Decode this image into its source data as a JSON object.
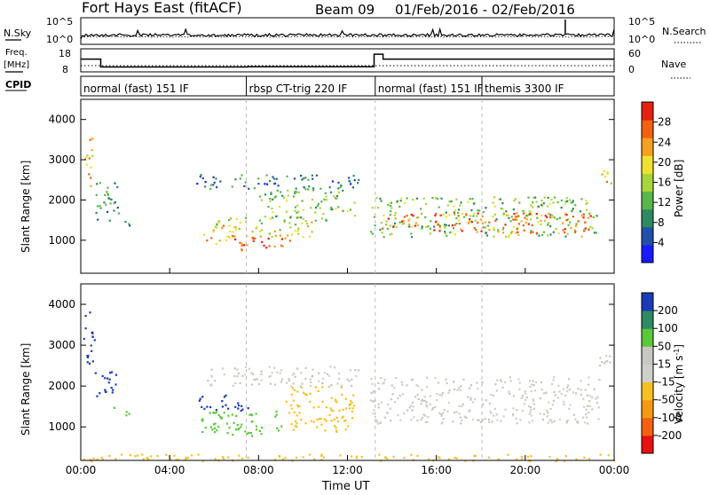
{
  "header": {
    "title": "Fort Hays East (fitACF)",
    "beam": "Beam 09",
    "date_range": "01/Feb/2016 - 02/Feb/2016"
  },
  "colors": {
    "power_scale": [
      "#1a1aff",
      "#2250a8",
      "#2e8a60",
      "#58b84a",
      "#a8d63a",
      "#f0e030",
      "#f5a020",
      "#f26010",
      "#e82010"
    ],
    "velocity_scale": [
      "#e81010",
      "#f26010",
      "#f59a10",
      "#f6c020",
      "#d0d0c8",
      "#c8c8c0",
      "#5ac83a",
      "#2e8a60",
      "#1a3ab8"
    ]
  },
  "top_panels": {
    "nsky": {
      "left_label": "N.Sky",
      "left_ticks": [
        "10^5",
        "10^0"
      ],
      "right_label": "N.Search",
      "right_ticks": [
        "10^5",
        "10^0"
      ],
      "series": {
        "nsky": "solid",
        "nsearch": "dotted"
      }
    },
    "freq": {
      "left_label_1": "Freq.",
      "left_label_2": "[MHz]",
      "left_ticks": [
        "18",
        "8"
      ],
      "right_label": "Nave",
      "right_ticks": [
        "60",
        "0"
      ],
      "freq_segments": [
        {
          "t0": 0.0,
          "t1": 0.9,
          "mhz": 14
        },
        {
          "t0": 0.9,
          "t1": 7.5,
          "mhz": 10.3
        },
        {
          "t0": 7.5,
          "t1": 13.2,
          "mhz": 10.4
        },
        {
          "t0": 13.2,
          "t1": 13.6,
          "mhz": 16.3
        },
        {
          "t0": 13.6,
          "t1": 24.0,
          "mhz": 14
        }
      ]
    },
    "cpid": {
      "label": "CPID",
      "segments": [
        {
          "t0": 0.0,
          "text": "normal (fast) 151 IF"
        },
        {
          "t0": 7.45,
          "text": "rbsp CT-trig 220 IF"
        },
        {
          "t0": 13.25,
          "text": "normal (fast) 151 IF"
        },
        {
          "t0": 18.05,
          "text": "themis 3300 IF"
        }
      ]
    }
  },
  "x_axis": {
    "label": "Time UT",
    "ticks": [
      "00:00",
      "04:00",
      "08:00",
      "12:00",
      "16:00",
      "20:00",
      "00:00"
    ]
  },
  "chart_data": [
    {
      "type": "heatmap",
      "title": "Power",
      "ylabel": "Slant Range [km]",
      "xlabel": "Time UT",
      "xlim": [
        0,
        24
      ],
      "ylim": [
        180,
        4500
      ],
      "yticks": [
        1000,
        2000,
        3000,
        4000
      ],
      "colorbar": {
        "label": "Power [dB]",
        "ticks": [
          4,
          8,
          12,
          16,
          20,
          24,
          28
        ],
        "range": [
          0,
          32
        ]
      },
      "regions": [
        {
          "t0": 0.1,
          "t1": 0.5,
          "r0": 2300,
          "r1": 3600,
          "value": 22
        },
        {
          "t0": 0.6,
          "t1": 1.7,
          "r0": 1500,
          "r1": 2500,
          "value": 10
        },
        {
          "t0": 1.7,
          "t1": 2.2,
          "r0": 1300,
          "r1": 1500,
          "value": 8
        },
        {
          "t0": 5.5,
          "t1": 7.0,
          "r0": 900,
          "r1": 1400,
          "value": 24
        },
        {
          "t0": 7.0,
          "t1": 9.5,
          "r0": 750,
          "r1": 1100,
          "value": 28
        },
        {
          "t0": 6.0,
          "t1": 10.5,
          "r0": 1100,
          "r1": 1600,
          "value": 18
        },
        {
          "t0": 8.0,
          "t1": 12.3,
          "r0": 1500,
          "r1": 2300,
          "value": 14
        },
        {
          "t0": 5.0,
          "t1": 12.5,
          "r0": 2300,
          "r1": 2650,
          "value": 8
        },
        {
          "t0": 13.0,
          "t1": 23.2,
          "r0": 1100,
          "r1": 2100,
          "value": 14
        },
        {
          "t0": 13.5,
          "t1": 23.0,
          "r0": 1200,
          "r1": 1700,
          "value": 26
        },
        {
          "t0": 23.3,
          "t1": 24.0,
          "r0": 2400,
          "r1": 2800,
          "value": 20
        }
      ]
    },
    {
      "type": "heatmap",
      "title": "Velocity",
      "ylabel": "Slant Range [km]",
      "xlabel": "Time UT",
      "xlim": [
        0,
        24
      ],
      "ylim": [
        180,
        4500
      ],
      "yticks": [
        1000,
        2000,
        3000,
        4000
      ],
      "colorbar": {
        "label": "Velocity [m s^-1]",
        "ticks": [
          -200,
          -100,
          -50,
          -15,
          15,
          50,
          100,
          200
        ]
      },
      "regions": [
        {
          "t0": 0.1,
          "t1": 0.6,
          "r0": 2500,
          "r1": 3900,
          "value": 150
        },
        {
          "t0": 0.6,
          "t1": 1.6,
          "r0": 1700,
          "r1": 2400,
          "value": 200
        },
        {
          "t0": 1.4,
          "t1": 2.2,
          "r0": 1300,
          "r1": 1500,
          "value": 40
        },
        {
          "t0": 5.3,
          "t1": 7.5,
          "r0": 1400,
          "r1": 1800,
          "value": 150
        },
        {
          "t0": 5.3,
          "t1": 9.2,
          "r0": 800,
          "r1": 1400,
          "value": 30
        },
        {
          "t0": 9.2,
          "t1": 12.3,
          "r0": 900,
          "r1": 2000,
          "value": -40
        },
        {
          "t0": 5.5,
          "t1": 12.5,
          "r0": 2000,
          "r1": 2500,
          "value": 0
        },
        {
          "t0": 13.0,
          "t1": 23.3,
          "r0": 1100,
          "r1": 2250,
          "value": 0
        },
        {
          "t0": 23.3,
          "t1": 24.0,
          "r0": 2300,
          "r1": 2800,
          "value": 0
        },
        {
          "t0": 0.0,
          "t1": 24.0,
          "r0": 180,
          "r1": 350,
          "value": -40
        }
      ]
    }
  ]
}
